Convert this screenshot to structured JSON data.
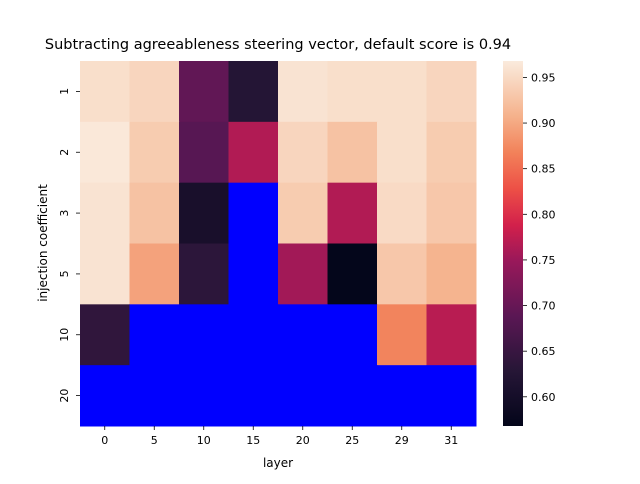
{
  "chart_data": {
    "type": "heatmap",
    "title": "Subtracting agreeableness steering vector, default score is 0.94",
    "xlabel": "layer",
    "ylabel": "injection coefficient",
    "x_categories": [
      "0",
      "5",
      "10",
      "15",
      "20",
      "25",
      "29",
      "31"
    ],
    "y_categories": [
      "1",
      "2",
      "3",
      "5",
      "10",
      "20"
    ],
    "values": [
      [
        0.955,
        0.945,
        0.695,
        0.625,
        0.96,
        0.955,
        0.955,
        0.945
      ],
      [
        0.965,
        0.935,
        0.685,
        0.765,
        0.945,
        0.925,
        0.955,
        0.935
      ],
      [
        0.96,
        0.925,
        0.605,
        null,
        0.935,
        0.765,
        0.95,
        0.93
      ],
      [
        0.96,
        0.895,
        0.635,
        null,
        0.755,
        0.57,
        0.93,
        0.91
      ],
      [
        0.64,
        null,
        null,
        null,
        null,
        null,
        0.87,
        0.77
      ],
      [
        null,
        null,
        null,
        null,
        null,
        null,
        null,
        null
      ]
    ],
    "missing_color": "#0000ff",
    "colorbar": {
      "vmin": 0.568,
      "vmax": 0.968,
      "ticks": [
        "0.60",
        "0.65",
        "0.70",
        "0.75",
        "0.80",
        "0.85",
        "0.90",
        "0.95"
      ],
      "tick_values": [
        0.6,
        0.65,
        0.7,
        0.75,
        0.8,
        0.85,
        0.9,
        0.95
      ],
      "colormap": "rocket"
    }
  }
}
